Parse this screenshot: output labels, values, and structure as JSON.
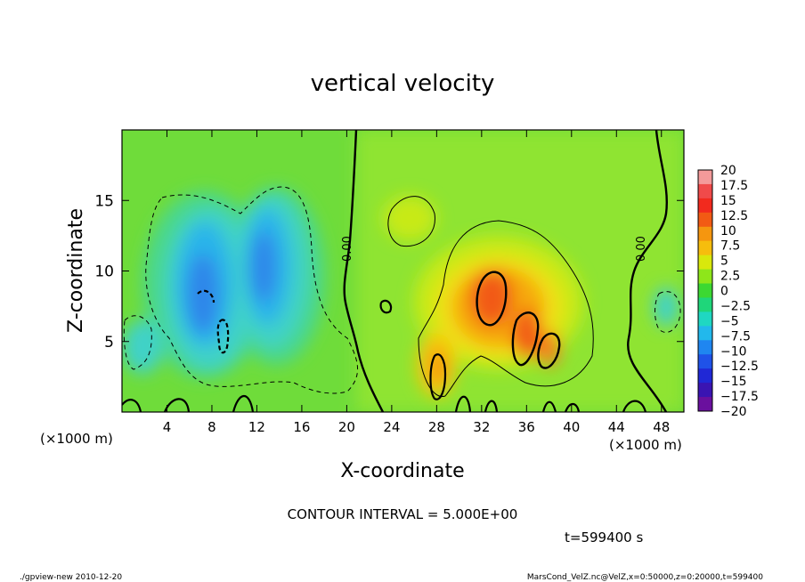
{
  "chart_data": {
    "type": "heatmap",
    "title": "vertical velocity",
    "xlabel": "X-coordinate",
    "ylabel": "Z-coordinate",
    "x_unit": "(×1000 m)",
    "x_unit_right": "(×1000 m)",
    "xlim": [
      0,
      50
    ],
    "ylim": [
      0,
      20
    ],
    "xticks": [
      "4",
      "8",
      "12",
      "16",
      "20",
      "24",
      "28",
      "32",
      "36",
      "40",
      "44",
      "48"
    ],
    "yticks": [
      "5",
      "10",
      "15"
    ],
    "colorbar": {
      "levels": [
        "20",
        "17.5",
        "15",
        "12.5",
        "10",
        "7.5",
        "5",
        "2.5",
        "0",
        "−2.5",
        "−5",
        "−7.5",
        "−10",
        "−12.5",
        "−15",
        "−17.5",
        "−20"
      ],
      "colors": [
        "#f49a9a",
        "#f04a4a",
        "#f22a1e",
        "#f25a14",
        "#f5960f",
        "#f6bd0d",
        "#d8e80c",
        "#8ee61a",
        "#3cd832",
        "#1fd67a",
        "#1fd7c2",
        "#22b8ec",
        "#1f86f0",
        "#1f52e8",
        "#2028d6",
        "#3a14b2",
        "#6a109e"
      ]
    },
    "contour_labels": [
      "0.00",
      "0.00"
    ],
    "contour_interval": "CONTOUR INTERVAL = 5.000E+00",
    "time": "t=599400 s"
  },
  "footer": {
    "left": "./gpview-new 2010-12-20",
    "right": "MarsCond_VelZ.nc@VelZ,x=0:50000,z=0:20000,t=599400"
  }
}
